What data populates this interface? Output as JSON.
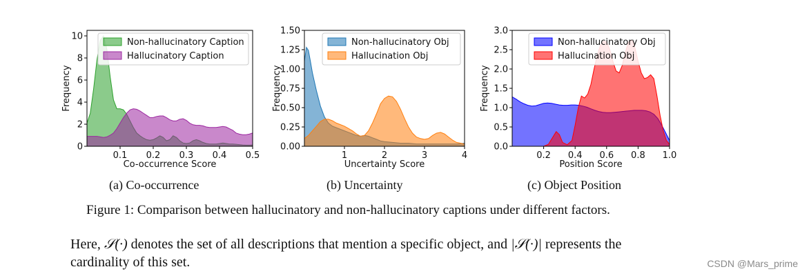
{
  "chart_data": [
    {
      "type": "area",
      "subcaption": "(a) Co-occurrence",
      "xlabel": "Co-occurrence Score",
      "ylabel": "Frequency",
      "xlim": [
        0.0,
        0.5
      ],
      "ylim": [
        0,
        10.5
      ],
      "xticks": [
        0.1,
        0.2,
        0.3,
        0.4,
        0.5
      ],
      "xtick_labels": [
        "0.1",
        "0.2",
        "0.3",
        "0.4",
        "0.5"
      ],
      "yticks": [
        0,
        2,
        4,
        6,
        8,
        10
      ],
      "ytick_labels": [
        "0",
        "2",
        "4",
        "6",
        "8",
        "10"
      ],
      "legend_position": "top-right",
      "series": [
        {
          "name": "Non-hallucinatory Caption",
          "color": "#2ca02c",
          "x": [
            0.0,
            0.01,
            0.02,
            0.03,
            0.04,
            0.05,
            0.06,
            0.07,
            0.08,
            0.09,
            0.1,
            0.11,
            0.12,
            0.13,
            0.14,
            0.15,
            0.16,
            0.17,
            0.18,
            0.19,
            0.2,
            0.21,
            0.22,
            0.23,
            0.24,
            0.25,
            0.26,
            0.27,
            0.28,
            0.29,
            0.3,
            0.31,
            0.32,
            0.33,
            0.34,
            0.35,
            0.36,
            0.37,
            0.38,
            0.39,
            0.4,
            0.41,
            0.42,
            0.43,
            0.44,
            0.45,
            0.46,
            0.47,
            0.48,
            0.49,
            0.5
          ],
          "y": [
            2.1,
            3.0,
            5.2,
            7.8,
            9.6,
            10.0,
            8.8,
            6.3,
            4.2,
            3.4,
            3.4,
            3.3,
            2.9,
            2.3,
            1.7,
            1.2,
            0.95,
            0.75,
            0.6,
            0.55,
            0.6,
            0.75,
            0.95,
            0.8,
            0.5,
            0.6,
            0.95,
            0.8,
            0.5,
            0.3,
            0.25,
            0.3,
            0.5,
            0.6,
            0.5,
            0.35,
            0.25,
            0.2,
            0.2,
            0.2,
            0.25,
            0.3,
            0.25,
            0.2,
            0.2,
            0.18,
            0.15,
            0.12,
            0.1,
            0.1,
            0.12
          ]
        },
        {
          "name": "Hallucinatory Caption",
          "color": "#9c27a0",
          "x": [
            0.0,
            0.01,
            0.02,
            0.03,
            0.04,
            0.05,
            0.06,
            0.07,
            0.08,
            0.09,
            0.1,
            0.11,
            0.12,
            0.13,
            0.14,
            0.15,
            0.16,
            0.17,
            0.18,
            0.19,
            0.2,
            0.21,
            0.22,
            0.23,
            0.24,
            0.25,
            0.26,
            0.27,
            0.28,
            0.29,
            0.3,
            0.31,
            0.32,
            0.33,
            0.34,
            0.35,
            0.36,
            0.37,
            0.38,
            0.39,
            0.4,
            0.41,
            0.42,
            0.43,
            0.44,
            0.45,
            0.46,
            0.47,
            0.48,
            0.49,
            0.5
          ],
          "y": [
            0.9,
            0.9,
            0.9,
            0.9,
            0.85,
            0.8,
            0.85,
            1.0,
            1.2,
            1.6,
            2.1,
            2.6,
            3.0,
            3.3,
            3.4,
            3.35,
            3.2,
            3.0,
            2.8,
            2.6,
            2.6,
            2.7,
            2.75,
            2.75,
            2.6,
            2.4,
            2.3,
            2.3,
            2.45,
            2.5,
            2.35,
            2.1,
            1.95,
            1.9,
            1.9,
            1.85,
            1.75,
            1.7,
            1.7,
            1.7,
            1.75,
            1.8,
            1.75,
            1.6,
            1.45,
            1.2,
            1.1,
            1.05,
            1.05,
            1.1,
            1.2
          ]
        }
      ]
    },
    {
      "type": "area",
      "subcaption": "(b) Uncertainty",
      "xlabel": "Uncertainty Score",
      "ylabel": "Frequency",
      "xlim": [
        0.0,
        4.0
      ],
      "ylim": [
        0,
        1.5
      ],
      "xticks": [
        1,
        2,
        3,
        4
      ],
      "xtick_labels": [
        "1",
        "2",
        "3",
        "4"
      ],
      "yticks": [
        0.0,
        0.25,
        0.5,
        0.75,
        1.0,
        1.25,
        1.5
      ],
      "ytick_labels": [
        "0.00",
        "0.25",
        "0.50",
        "0.75",
        "1.00",
        "1.25",
        "1.50"
      ],
      "legend_position": "top-right",
      "series": [
        {
          "name": "Non-hallucinatory Obj",
          "color": "#1f77b4",
          "x": [
            0.0,
            0.05,
            0.1,
            0.15,
            0.2,
            0.3,
            0.4,
            0.5,
            0.6,
            0.7,
            0.8,
            0.9,
            1.0,
            1.1,
            1.2,
            1.3,
            1.4,
            1.5,
            1.6,
            1.7,
            1.8,
            1.9,
            2.0,
            2.2,
            2.4,
            2.6,
            2.8,
            3.0,
            3.2,
            3.4,
            3.6,
            3.8,
            4.0
          ],
          "y": [
            1.1,
            1.28,
            1.24,
            1.1,
            0.95,
            0.72,
            0.52,
            0.38,
            0.3,
            0.26,
            0.24,
            0.22,
            0.2,
            0.18,
            0.16,
            0.14,
            0.13,
            0.14,
            0.13,
            0.11,
            0.09,
            0.07,
            0.06,
            0.05,
            0.04,
            0.04,
            0.03,
            0.03,
            0.03,
            0.03,
            0.03,
            0.03,
            0.04
          ]
        },
        {
          "name": "Hallucination Obj",
          "color": "#ff7f0e",
          "x": [
            0.0,
            0.1,
            0.2,
            0.3,
            0.4,
            0.5,
            0.6,
            0.7,
            0.8,
            0.9,
            1.0,
            1.1,
            1.2,
            1.3,
            1.4,
            1.5,
            1.6,
            1.7,
            1.8,
            1.9,
            2.0,
            2.1,
            2.2,
            2.3,
            2.4,
            2.5,
            2.6,
            2.7,
            2.8,
            2.9,
            3.0,
            3.1,
            3.2,
            3.3,
            3.4,
            3.5,
            3.6,
            3.7,
            3.8,
            3.9,
            4.0
          ],
          "y": [
            0.1,
            0.14,
            0.2,
            0.26,
            0.32,
            0.35,
            0.35,
            0.33,
            0.3,
            0.28,
            0.26,
            0.23,
            0.2,
            0.16,
            0.13,
            0.14,
            0.2,
            0.3,
            0.42,
            0.55,
            0.62,
            0.65,
            0.64,
            0.58,
            0.48,
            0.36,
            0.25,
            0.17,
            0.12,
            0.1,
            0.09,
            0.1,
            0.14,
            0.17,
            0.18,
            0.16,
            0.12,
            0.08,
            0.05,
            0.04,
            0.03
          ]
        }
      ]
    },
    {
      "type": "area",
      "subcaption": "(c) Object Position",
      "xlabel": "Position Score",
      "ylabel": "Frequency",
      "xlim": [
        0.0,
        1.0
      ],
      "ylim": [
        0,
        3.0
      ],
      "xticks": [
        0.2,
        0.4,
        0.6,
        0.8,
        1.0
      ],
      "xtick_labels": [
        "0.2",
        "0.4",
        "0.6",
        "0.8",
        "1.0"
      ],
      "yticks": [
        0.0,
        0.5,
        1.0,
        1.5,
        2.0,
        2.5,
        3.0
      ],
      "ytick_labels": [
        "0.0",
        "0.5",
        "1.0",
        "1.5",
        "2.0",
        "2.5",
        "3.0"
      ],
      "legend_position": "top-right",
      "series": [
        {
          "name": "Non-hallucinatory Obj",
          "color": "#0000ff",
          "x": [
            0.0,
            0.025,
            0.05,
            0.075,
            0.1,
            0.125,
            0.15,
            0.175,
            0.2,
            0.225,
            0.25,
            0.275,
            0.3,
            0.325,
            0.35,
            0.375,
            0.4,
            0.425,
            0.45,
            0.475,
            0.5,
            0.525,
            0.55,
            0.575,
            0.6,
            0.625,
            0.65,
            0.675,
            0.7,
            0.725,
            0.75,
            0.775,
            0.8,
            0.825,
            0.85,
            0.875,
            0.9,
            0.925,
            0.95,
            0.975,
            1.0
          ],
          "y": [
            1.28,
            1.22,
            1.15,
            1.1,
            1.06,
            1.04,
            1.05,
            1.08,
            1.11,
            1.12,
            1.11,
            1.09,
            1.07,
            1.06,
            1.06,
            1.07,
            1.07,
            1.06,
            1.04,
            1.01,
            0.97,
            0.93,
            0.9,
            0.88,
            0.87,
            0.87,
            0.88,
            0.89,
            0.9,
            0.91,
            0.92,
            0.93,
            0.93,
            0.93,
            0.92,
            0.89,
            0.83,
            0.72,
            0.55,
            0.35,
            0.15
          ]
        },
        {
          "name": "Hallucination Obj",
          "color": "#ff0000",
          "x": [
            0.0,
            0.2,
            0.23,
            0.26,
            0.28,
            0.3,
            0.32,
            0.35,
            0.38,
            0.4,
            0.42,
            0.44,
            0.46,
            0.48,
            0.5,
            0.52,
            0.54,
            0.56,
            0.58,
            0.6,
            0.62,
            0.64,
            0.66,
            0.68,
            0.7,
            0.72,
            0.74,
            0.76,
            0.78,
            0.8,
            0.82,
            0.84,
            0.86,
            0.88,
            0.9,
            0.92,
            0.94,
            0.96,
            0.98,
            1.0
          ],
          "y": [
            0.0,
            0.0,
            0.05,
            0.25,
            0.38,
            0.3,
            0.1,
            0.04,
            0.15,
            0.55,
            1.0,
            1.3,
            1.25,
            1.35,
            1.6,
            2.0,
            2.35,
            2.6,
            2.72,
            2.7,
            2.5,
            2.2,
            1.95,
            1.9,
            2.1,
            2.45,
            2.7,
            2.75,
            2.55,
            2.2,
            1.9,
            1.75,
            1.78,
            1.85,
            1.75,
            1.3,
            0.8,
            0.4,
            0.15,
            0.05
          ]
        }
      ]
    }
  ],
  "figure_caption": "Figure 1: Comparison between hallucinatory and non-hallucinatory captions under different factors.",
  "paragraph": {
    "line1_prefix": "Here, ",
    "set_symbol": "𝒮(·)",
    "line1_middle": " denotes the set of all descriptions that mention a specific object, and ",
    "cardinality_symbol": "|𝒮(·)|",
    "line1_suffix": " represents the",
    "line2": "cardinality of this set."
  },
  "watermark": "CSDN @Mars_prime"
}
